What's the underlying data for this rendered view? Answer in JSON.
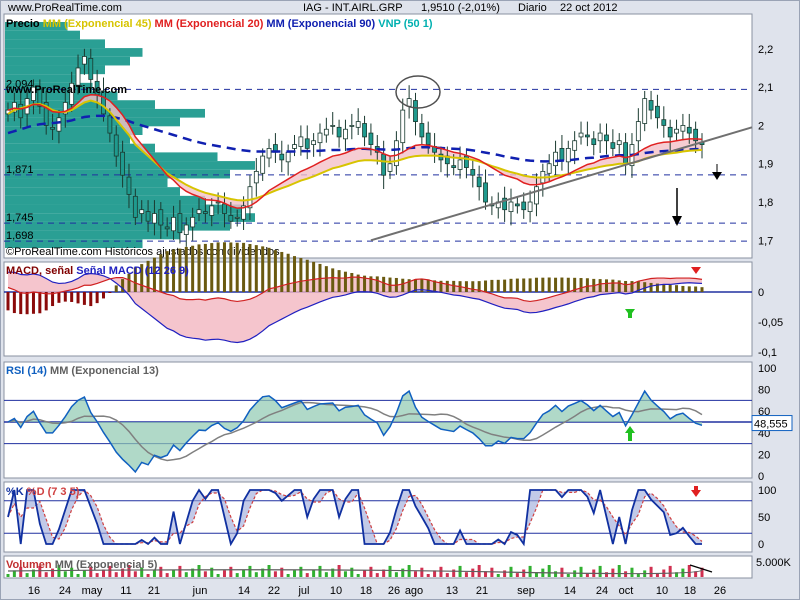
{
  "header": {
    "site": "www.ProRealTime.com",
    "symbol": "IAG - INT.AIRL.GRP",
    "quote": "1,9510 (-2,01%)",
    "period": "Diario",
    "date": "22 oct 2012"
  },
  "colors": {
    "price_label": "#000000",
    "mm45": "#d7c400",
    "mm20": "#e02020",
    "mm90": "#1020b0",
    "vnp": "#00b0b0",
    "macd": "#800000",
    "signal": "#2020c0",
    "rsi": "#1060c0",
    "stoch_k": "#1030a0",
    "stoch_d": "#d04040",
    "volume_label": "#c03030"
  },
  "watermark": {
    "top": "www.ProRealTime.com",
    "bottom": "©ProRealTime.com Históricos ajustados con dividendos"
  },
  "x_axis": {
    "ticks": [
      "16",
      "24",
      "may",
      "11",
      "21",
      "jun",
      "14",
      "22",
      "jul",
      "10",
      "18",
      "26",
      "ago",
      "13",
      "21",
      "sep",
      "14",
      "24",
      "oct",
      "10",
      "18",
      "26"
    ]
  },
  "chart_data": [
    {
      "type": "candlestick",
      "title": "Precio",
      "legend": [
        "MM (Exponencial 45)",
        "MM (Exponencial 20)",
        "MM (Exponencial 90)",
        "VNP (50 1)"
      ],
      "ylim": [
        1.68,
        2.27
      ],
      "yticks": [
        "2,2",
        "2,1",
        "2",
        "1,9",
        "1,8",
        "1,7"
      ],
      "level_labels": [
        "2,094",
        "1,871",
        "1,745",
        "1,698"
      ],
      "levels": [
        2.094,
        1.871,
        1.745,
        1.698
      ],
      "close": [
        2.04,
        2.06,
        2.02,
        2.07,
        2.1,
        2.05,
        2.0,
        1.99,
        2.02,
        2.06,
        2.11,
        2.15,
        2.18,
        2.12,
        2.08,
        2.03,
        1.98,
        1.92,
        1.87,
        1.82,
        1.76,
        1.78,
        1.75,
        1.77,
        1.74,
        1.73,
        1.76,
        1.72,
        1.74,
        1.76,
        1.78,
        1.77,
        1.79,
        1.8,
        1.77,
        1.75,
        1.76,
        1.79,
        1.84,
        1.88,
        1.92,
        1.94,
        1.93,
        1.91,
        1.93,
        1.95,
        1.97,
        1.94,
        1.96,
        1.98,
        1.99,
        2.0,
        1.97,
        1.99,
        2.0,
        2.01,
        1.97,
        1.95,
        1.93,
        1.87,
        1.9,
        1.96,
        2.04,
        2.07,
        2.01,
        1.97,
        1.95,
        1.93,
        1.91,
        1.9,
        1.89,
        1.91,
        1.89,
        1.87,
        1.84,
        1.8,
        1.79,
        1.8,
        1.78,
        1.8,
        1.79,
        1.78,
        1.8,
        1.84,
        1.88,
        1.9,
        1.93,
        1.91,
        1.94,
        1.96,
        1.98,
        1.97,
        1.95,
        1.98,
        1.96,
        1.94,
        1.96,
        1.9,
        1.95,
        2.01,
        2.07,
        2.04,
        2.02,
        2.0,
        1.97,
        1.99,
        2.0,
        1.98,
        1.96,
        1.95
      ],
      "sma_lines": [
        {
          "name": "MM (Exponencial 45)",
          "values": [
            2.03,
            2.04,
            2.045,
            2.05,
            2.055,
            2.056,
            2.05,
            2.04,
            2.035,
            2.035,
            2.04,
            2.05,
            2.06,
            2.065,
            2.06,
            2.05,
            2.035,
            2.015,
            1.995,
            1.975,
            1.95,
            1.935,
            1.92,
            1.905,
            1.89,
            1.875,
            1.865,
            1.855,
            1.845,
            1.837,
            1.83,
            1.824,
            1.82,
            1.816,
            1.812,
            1.808,
            1.805,
            1.804,
            1.806,
            1.81,
            1.816,
            1.823,
            1.83,
            1.836,
            1.842,
            1.849,
            1.856,
            1.861,
            1.867,
            1.874,
            1.881,
            1.888,
            1.892,
            1.897,
            1.902,
            1.907,
            1.909,
            1.909,
            1.908,
            1.906,
            1.905,
            1.907,
            1.912,
            1.917,
            1.92,
            1.921,
            1.921,
            1.921,
            1.92,
            1.918,
            1.916,
            1.915,
            1.913,
            1.91,
            1.906,
            1.9,
            1.894,
            1.889,
            1.883,
            1.878,
            1.874,
            1.869,
            1.866,
            1.864,
            1.864,
            1.865,
            1.868,
            1.87,
            1.873,
            1.877,
            1.881,
            1.885,
            1.888,
            1.892,
            1.895,
            1.897,
            1.9,
            1.9,
            1.902,
            1.906,
            1.913,
            1.918,
            1.922,
            1.925,
            1.927,
            1.929,
            1.932,
            1.934,
            1.935,
            1.936
          ]
        },
        {
          "name": "MM (Exponencial 20)",
          "values": [
            2.04,
            2.045,
            2.043,
            2.047,
            2.055,
            2.054,
            2.046,
            2.036,
            2.034,
            2.037,
            2.045,
            2.059,
            2.075,
            2.08,
            2.079,
            2.074,
            2.064,
            2.047,
            2.027,
            2.002,
            1.97,
            1.95,
            1.93,
            1.91,
            1.89,
            1.87,
            1.857,
            1.84,
            1.828,
            1.82,
            1.814,
            1.806,
            1.805,
            1.803,
            1.797,
            1.789,
            1.784,
            1.785,
            1.79,
            1.8,
            1.814,
            1.83,
            1.84,
            1.85,
            1.86,
            1.87,
            1.88,
            1.887,
            1.895,
            1.904,
            1.912,
            1.92,
            1.923,
            1.928,
            1.935,
            1.94,
            1.94,
            1.938,
            1.934,
            1.926,
            1.92,
            1.922,
            1.93,
            1.94,
            1.948,
            1.95,
            1.948,
            1.944,
            1.94,
            1.935,
            1.93,
            1.927,
            1.922,
            1.916,
            1.91,
            1.9,
            1.89,
            1.88,
            1.87,
            1.865,
            1.86,
            1.85,
            1.845,
            1.845,
            1.848,
            1.853,
            1.86,
            1.866,
            1.873,
            1.882,
            1.89,
            1.898,
            1.902,
            1.91,
            1.914,
            1.917,
            1.92,
            1.916,
            1.92,
            1.93,
            1.94,
            1.948,
            1.953,
            1.956,
            1.957,
            1.96,
            1.963,
            1.965,
            1.965,
            1.964
          ]
        },
        {
          "name": "MM (Exponencial 90)",
          "values": [
            1.98,
            1.985,
            1.99,
            1.995,
            2.0,
            2.003,
            2.005,
            2.006,
            2.008,
            2.01,
            2.013,
            2.018,
            2.022,
            2.024,
            2.025,
            2.025,
            2.023,
            2.02,
            2.016,
            2.011,
            2.005,
            2.0,
            1.995,
            1.99,
            1.985,
            1.98,
            1.975,
            1.97,
            1.965,
            1.96,
            1.956,
            1.952,
            1.949,
            1.946,
            1.943,
            1.94,
            1.937,
            1.935,
            1.933,
            1.932,
            1.932,
            1.932,
            1.932,
            1.932,
            1.932,
            1.932,
            1.933,
            1.933,
            1.933,
            1.934,
            1.935,
            1.936,
            1.936,
            1.937,
            1.938,
            1.939,
            1.939,
            1.938,
            1.938,
            1.937,
            1.936,
            1.937,
            1.939,
            1.941,
            1.942,
            1.943,
            1.943,
            1.942,
            1.941,
            1.94,
            1.939,
            1.938,
            1.937,
            1.935,
            1.932,
            1.929,
            1.926,
            1.923,
            1.919,
            1.916,
            1.913,
            1.91,
            1.908,
            1.907,
            1.906,
            1.906,
            1.907,
            1.908,
            1.909,
            1.911,
            1.913,
            1.915,
            1.916,
            1.918,
            1.92,
            1.921,
            1.922,
            1.922,
            1.923,
            1.925,
            1.928,
            1.93,
            1.932,
            1.933,
            1.934,
            1.935,
            1.936,
            1.937,
            1.938,
            1.938
          ]
        }
      ],
      "trendline": {
        "from": [
          57,
          1.7
        ],
        "to": [
          109,
          1.95
        ]
      }
    },
    {
      "type": "histogram+line",
      "title": "MACD",
      "legend": [
        "MACD",
        "señal",
        "Señal MACD (12 26 9)"
      ],
      "ylim": [
        -0.11,
        0.06
      ],
      "yticks": [
        "0",
        "-0,05",
        "-0,1"
      ]
    },
    {
      "type": "line",
      "title": "RSI (14)",
      "legend": [
        "RSI (14)",
        "MM (Exponencial 13)"
      ],
      "ylim": [
        0,
        100
      ],
      "yticks": [
        "100",
        "80",
        "60",
        "40",
        "20",
        "0"
      ],
      "last_value_label": "48,555",
      "last_value": 48.555
    },
    {
      "type": "line",
      "title": "%K %D (7 3 5)",
      "legend": [
        "%K",
        "%D (7 3 5)"
      ],
      "ylim": [
        0,
        100
      ],
      "yticks": [
        "100",
        "50",
        "0"
      ]
    },
    {
      "type": "bar",
      "title": "Volumen",
      "legend": [
        "Volumen",
        "MM (Exponencial 5)"
      ],
      "yticks": [
        "5.000K"
      ]
    }
  ]
}
